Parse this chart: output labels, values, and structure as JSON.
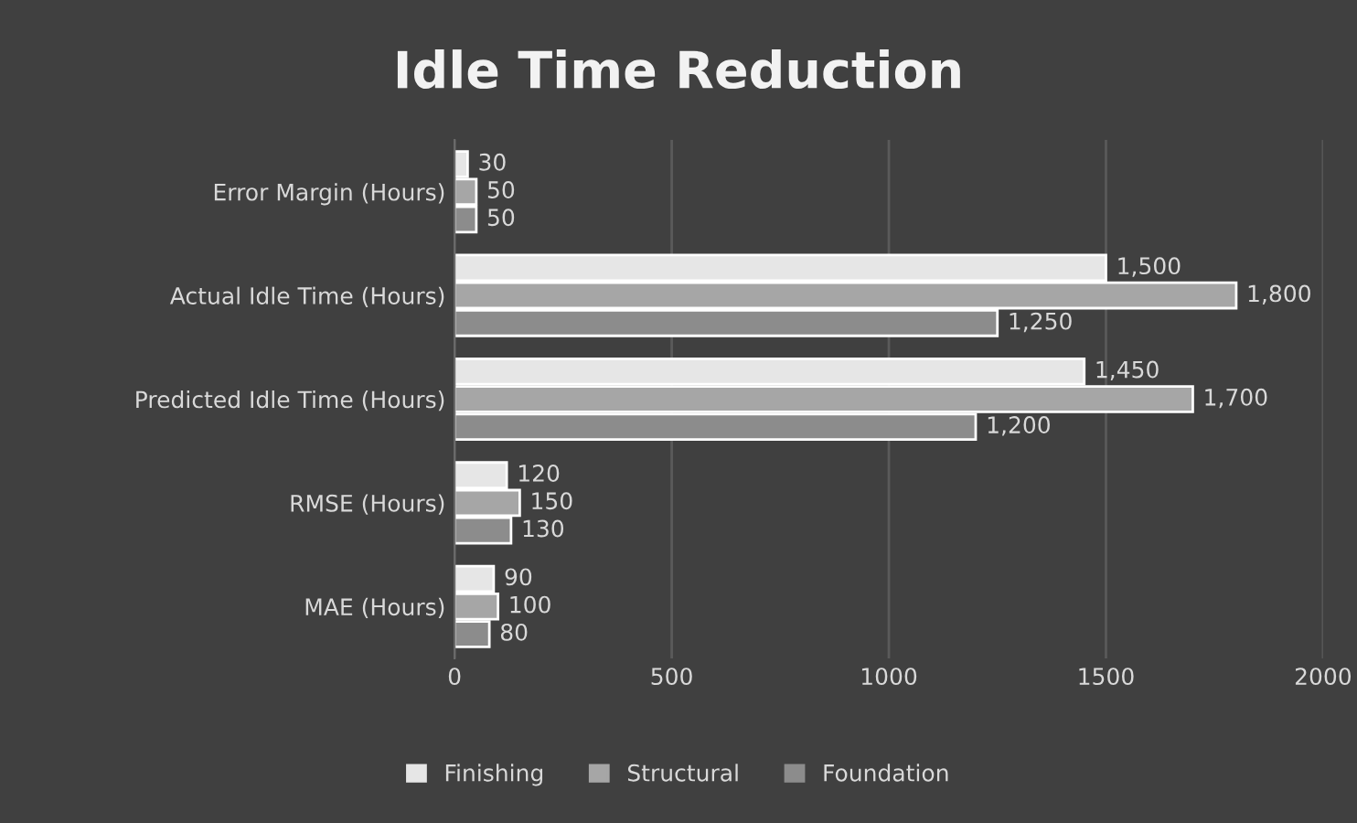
{
  "chart_data": {
    "type": "bar",
    "orientation": "horizontal",
    "title": "Idle Time Reduction",
    "categories": [
      "Error Margin (Hours)",
      "Actual Idle Time (Hours)",
      "Predicted Idle Time (Hours)",
      "RMSE (Hours)",
      "MAE (Hours)"
    ],
    "series": [
      {
        "name": "Finishing",
        "color": "#e6e6e6",
        "values": [
          30,
          1500,
          1450,
          120,
          90
        ],
        "value_labels": [
          "30",
          "1,500",
          "1,450",
          "120",
          "90"
        ]
      },
      {
        "name": "Structural",
        "color": "#a6a6a6",
        "values": [
          50,
          1800,
          1700,
          150,
          100
        ],
        "value_labels": [
          "50",
          "1,800",
          "1,700",
          "150",
          "100"
        ]
      },
      {
        "name": "Foundation",
        "color": "#8c8c8c",
        "values": [
          50,
          1250,
          1200,
          130,
          80
        ],
        "value_labels": [
          "50",
          "1,250",
          "1,200",
          "130",
          "80"
        ]
      }
    ],
    "xlim": [
      0,
      2000
    ],
    "xticks": [
      0,
      500,
      1000,
      1500,
      2000
    ],
    "grid": "x",
    "legend": "bottom"
  }
}
